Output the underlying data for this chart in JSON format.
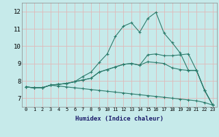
{
  "xlabel": "Humidex (Indice chaleur)",
  "bg_color": "#c6eaea",
  "grid_color": "#e0b8b8",
  "line_color": "#2a7a6a",
  "xlim": [
    -0.5,
    23.5
  ],
  "ylim": [
    6.5,
    12.5
  ],
  "xticks": [
    0,
    1,
    2,
    3,
    4,
    5,
    6,
    7,
    8,
    9,
    10,
    11,
    12,
    13,
    14,
    15,
    16,
    17,
    18,
    19,
    20,
    21,
    22,
    23
  ],
  "yticks": [
    7,
    8,
    9,
    10,
    11,
    12
  ],
  "lines": [
    [
      7.65,
      7.6,
      7.6,
      7.75,
      7.8,
      7.85,
      7.95,
      8.25,
      8.5,
      9.05,
      9.55,
      10.55,
      11.15,
      11.35,
      10.8,
      11.6,
      11.95,
      10.75,
      10.2,
      9.6,
      8.6,
      8.6,
      7.45,
      6.6
    ],
    [
      7.65,
      7.6,
      7.6,
      7.75,
      7.8,
      7.85,
      7.95,
      8.05,
      8.15,
      8.5,
      8.65,
      8.8,
      8.95,
      9.0,
      8.9,
      9.5,
      9.55,
      9.45,
      9.45,
      9.5,
      9.55,
      8.6,
      7.45,
      6.6
    ],
    [
      7.65,
      7.6,
      7.6,
      7.75,
      7.8,
      7.85,
      7.95,
      8.05,
      8.15,
      8.5,
      8.65,
      8.8,
      8.95,
      9.0,
      8.9,
      9.1,
      9.05,
      9.0,
      8.75,
      8.65,
      8.6,
      8.6,
      7.45,
      6.6
    ],
    [
      7.65,
      7.6,
      7.6,
      7.75,
      7.7,
      7.65,
      7.6,
      7.55,
      7.5,
      7.45,
      7.4,
      7.35,
      7.3,
      7.25,
      7.2,
      7.15,
      7.1,
      7.05,
      7.0,
      6.95,
      6.9,
      6.85,
      6.75,
      6.6
    ]
  ]
}
